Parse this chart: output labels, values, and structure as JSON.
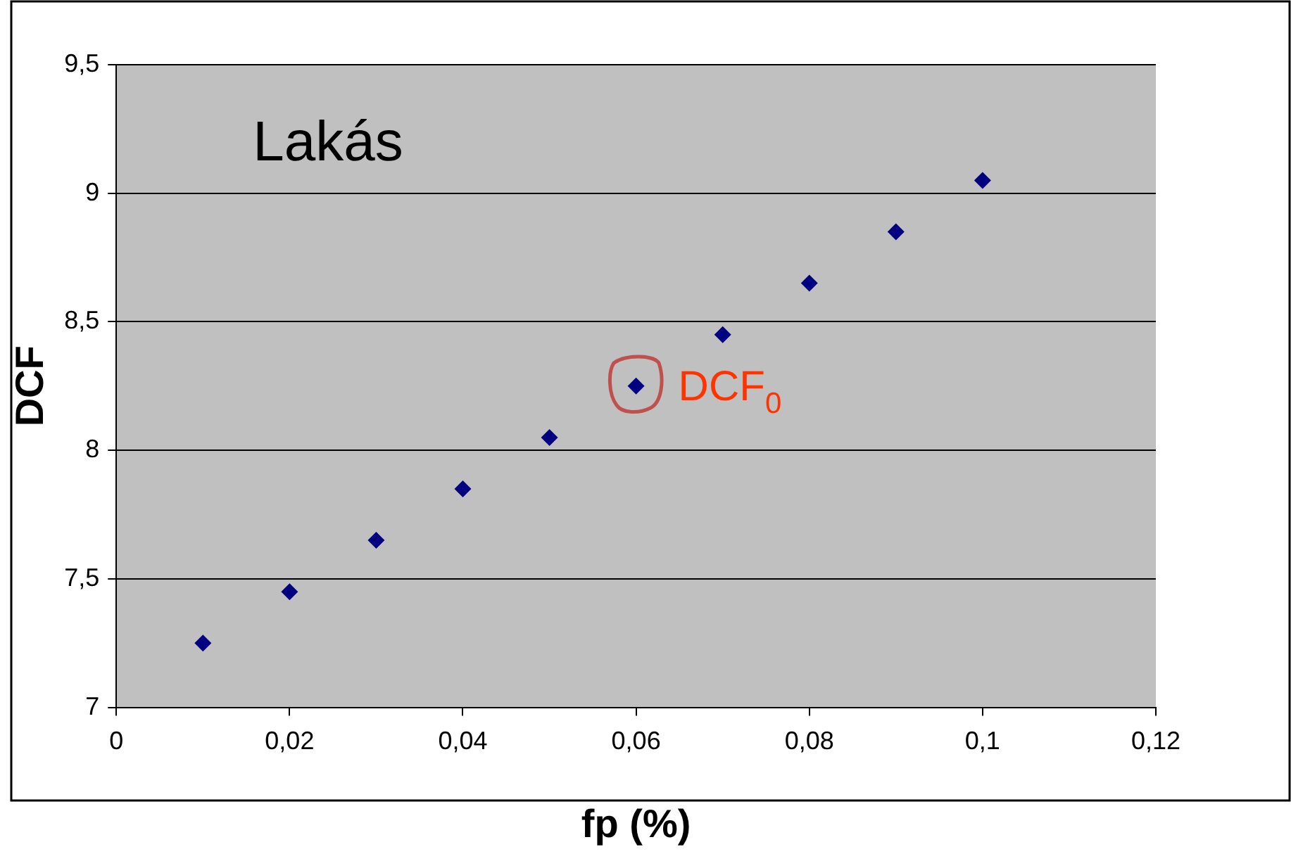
{
  "chart_data": {
    "type": "scatter",
    "title": "Lakás",
    "xlabel": "fp (%)",
    "ylabel": "DCF",
    "x": [
      0.01,
      0.02,
      0.03,
      0.04,
      0.05,
      0.06,
      0.07,
      0.08,
      0.09,
      0.1
    ],
    "series": [
      {
        "color": "#000080",
        "values": [
          7.25,
          7.45,
          7.65,
          7.85,
          8.05,
          8.25,
          8.45,
          8.65,
          8.85,
          9.05
        ]
      }
    ],
    "xlim": [
      0,
      0.12
    ],
    "xticks": [
      0,
      {
        "value": 0.02,
        "label": "0,02"
      },
      {
        "value": 0.04,
        "label": "0,04"
      },
      {
        "value": 0.06,
        "label": "0,06"
      },
      {
        "value": 0.08,
        "label": "0,08"
      },
      {
        "value": 0.1,
        "label": "0,1"
      },
      {
        "value": 0.12,
        "label": "0,12"
      }
    ],
    "ylim": [
      7,
      9.5
    ],
    "yticks": [
      7,
      {
        "value": 7.5,
        "label": "7,5"
      },
      8,
      {
        "value": 8.5,
        "label": "8,5"
      },
      9,
      {
        "value": 9.5,
        "label": "9,5"
      }
    ],
    "annotations": [
      {
        "text": "DCF$_{0}$",
        "x": 0.06,
        "y": 8.25
      }
    ],
    "grid": "y",
    "legend": false,
    "marker": "diamond"
  }
}
